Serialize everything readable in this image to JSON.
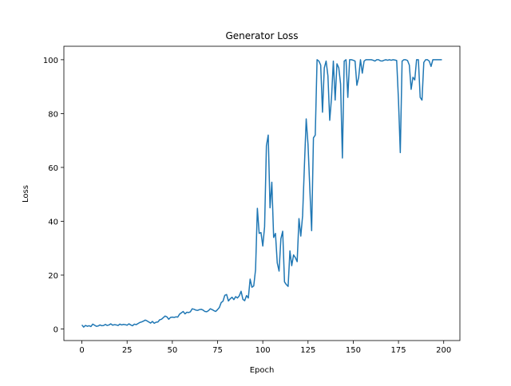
{
  "chart_data": {
    "type": "line",
    "title": "Generator Loss",
    "x_label": "Epoch",
    "y_label": "Loss",
    "x": [
      0,
      1,
      2,
      3,
      4,
      5,
      6,
      7,
      8,
      9,
      10,
      11,
      12,
      13,
      14,
      15,
      16,
      17,
      18,
      19,
      20,
      21,
      22,
      23,
      24,
      25,
      26,
      27,
      28,
      29,
      30,
      31,
      32,
      33,
      34,
      35,
      36,
      37,
      38,
      39,
      40,
      41,
      42,
      43,
      44,
      45,
      46,
      47,
      48,
      49,
      50,
      51,
      52,
      53,
      54,
      55,
      56,
      57,
      58,
      59,
      60,
      61,
      62,
      63,
      64,
      65,
      66,
      67,
      68,
      69,
      70,
      71,
      72,
      73,
      74,
      75,
      76,
      77,
      78,
      79,
      80,
      81,
      82,
      83,
      84,
      85,
      86,
      87,
      88,
      89,
      90,
      91,
      92,
      93,
      94,
      95,
      96,
      97,
      98,
      99,
      100,
      101,
      102,
      103,
      104,
      105,
      106,
      107,
      108,
      109,
      110,
      111,
      112,
      113,
      114,
      115,
      116,
      117,
      118,
      119,
      120,
      121,
      122,
      123,
      124,
      125,
      126,
      127,
      128,
      129,
      130,
      131,
      132,
      133,
      134,
      135,
      136,
      137,
      138,
      139,
      140,
      141,
      142,
      143,
      144,
      145,
      146,
      147,
      148,
      149,
      150,
      151,
      152,
      153,
      154,
      155,
      156,
      157,
      158,
      159,
      160,
      161,
      162,
      163,
      164,
      165,
      166,
      167,
      168,
      169,
      170,
      171,
      172,
      173,
      174,
      175,
      176,
      177,
      178,
      179,
      180,
      181,
      182,
      183,
      184,
      185,
      186,
      187,
      188,
      189,
      190,
      191,
      192,
      193,
      194,
      195,
      196,
      197,
      198,
      199
    ],
    "series": [
      {
        "name": "Generator Loss",
        "color": "#1f77b4",
        "values": [
          1.5,
          0.7,
          1.3,
          1.0,
          1.2,
          0.9,
          1.8,
          1.4,
          1.0,
          1.1,
          1.5,
          1.2,
          1.3,
          1.7,
          1.3,
          1.5,
          1.9,
          1.4,
          1.6,
          1.5,
          1.3,
          1.8,
          1.5,
          1.7,
          1.6,
          1.4,
          1.9,
          1.5,
          1.2,
          1.8,
          1.6,
          2.0,
          2.4,
          2.6,
          2.9,
          3.3,
          3.0,
          2.6,
          2.2,
          2.8,
          2.1,
          2.5,
          2.6,
          3.4,
          3.6,
          4.2,
          4.8,
          4.5,
          3.6,
          4.3,
          4.4,
          4.3,
          4.5,
          4.4,
          5.5,
          6.0,
          6.5,
          5.6,
          6.2,
          6.1,
          6.4,
          7.5,
          7.3,
          7.0,
          6.9,
          7.2,
          7.3,
          7.0,
          6.5,
          6.4,
          6.8,
          7.5,
          7.2,
          6.8,
          6.5,
          7.2,
          8.0,
          9.8,
          10.3,
          12.5,
          12.8,
          10.4,
          11.2,
          11.8,
          10.9,
          12.0,
          11.5,
          12.3,
          14.0,
          11.0,
          10.5,
          12.4,
          11.5,
          18.5,
          15.5,
          16.0,
          22.0,
          44.8,
          35.5,
          35.8,
          30.8,
          38.0,
          68.0,
          72.0,
          45.0,
          54.5,
          34.0,
          35.5,
          24.5,
          21.5,
          33.5,
          36.3,
          17.5,
          16.5,
          15.8,
          29.0,
          23.5,
          27.5,
          26.5,
          25.0,
          41.0,
          34.5,
          42.0,
          60.5,
          78.0,
          68.5,
          52.0,
          36.5,
          71.0,
          72.0,
          100,
          99.5,
          98,
          80.5,
          97,
          99.5,
          94,
          77.5,
          86,
          99.5,
          85,
          98.5,
          97,
          91,
          63.5,
          99.5,
          100,
          86,
          100,
          100,
          99.8,
          99.5,
          90.5,
          93.5,
          100,
          95,
          99.5,
          100,
          100,
          100,
          100,
          99.8,
          99.5,
          100,
          100,
          99.6,
          99.5,
          99.8,
          100,
          99.8,
          100,
          99.8,
          100,
          99.9,
          99.7,
          85,
          65.5,
          99.5,
          100,
          100,
          99.7,
          98,
          89,
          93.5,
          92.5,
          100,
          100,
          86,
          85,
          99,
          100,
          100,
          99.5,
          97.5,
          100,
          100,
          100,
          100,
          100,
          100
        ]
      }
    ],
    "xlim": [
      -9.95,
      208.95
    ],
    "ylim": [
      -4.3,
      105
    ],
    "xticks": [
      0,
      25,
      50,
      75,
      100,
      125,
      150,
      175,
      200
    ],
    "yticks": [
      0,
      20,
      40,
      60,
      80,
      100
    ],
    "grid": false
  }
}
